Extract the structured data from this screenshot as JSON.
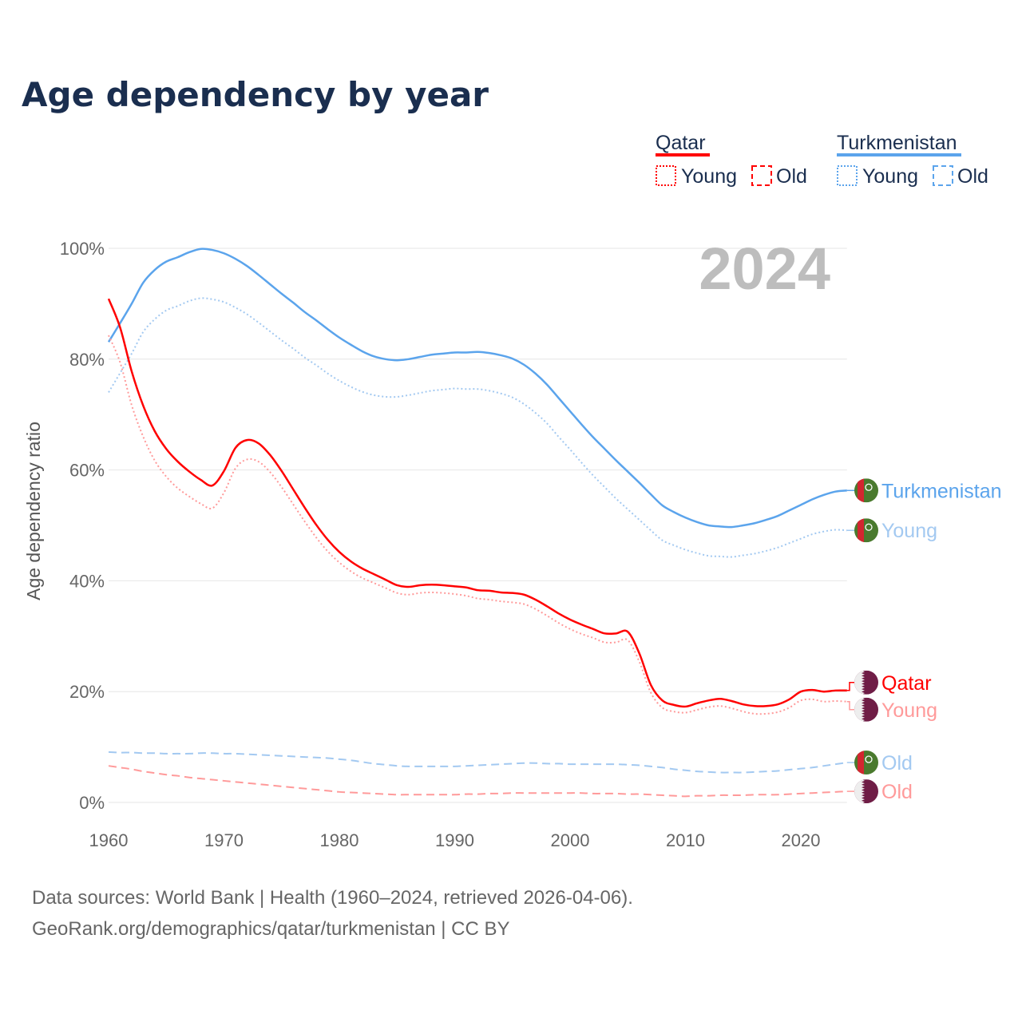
{
  "title": "Age dependency by year",
  "year_badge": "2024",
  "footer": {
    "line1": "Data sources: World Bank | Health (1960–2024, retrieved 2026-04-06).",
    "line2": "GeoRank.org/demographics/qatar/turkmenistan | CC BY"
  },
  "legend": {
    "qatar": {
      "name": "Qatar",
      "young": "Young",
      "old": "Old"
    },
    "turkmenistan": {
      "name": "Turkmenistan",
      "young": "Young",
      "old": "Old"
    }
  },
  "colors": {
    "qatar": "#ff0000",
    "qatar_light": "#ff9a9a",
    "turkmenistan": "#5ba4ec",
    "turkmenistan_light": "#a3c9f1",
    "qatar_flag": "#6f1d46",
    "turkmenistan_flag": "#4a7a2e",
    "turkmenistan_flag_stripe": "#d22630"
  },
  "chart_data": {
    "type": "line",
    "title": "Age dependency by year",
    "xlabel": "",
    "ylabel": "Age dependency ratio",
    "xlim": [
      1960,
      2024
    ],
    "ylim": [
      0,
      100
    ],
    "x_ticks": [
      "1960",
      "1970",
      "1980",
      "1990",
      "2000",
      "2010",
      "2020"
    ],
    "y_ticks": [
      "0%",
      "20%",
      "40%",
      "60%",
      "80%",
      "100%"
    ],
    "grid": true,
    "x_start": 1960,
    "series": [
      {
        "key": "tkm_total",
        "name": "Turkmenistan",
        "label": "Turkmenistan",
        "country": "turkmenistan",
        "style": "solid",
        "values": [
          83.1,
          86.5,
          90.0,
          93.8,
          96.1,
          97.6,
          98.4,
          99.3,
          99.9,
          99.7,
          99.1,
          98.1,
          96.8,
          95.2,
          93.5,
          91.8,
          90.2,
          88.5,
          87.0,
          85.4,
          83.9,
          82.6,
          81.4,
          80.5,
          80.0,
          79.8,
          80.0,
          80.4,
          80.8,
          81.0,
          81.2,
          81.2,
          81.3,
          81.1,
          80.7,
          80.1,
          79.0,
          77.4,
          75.4,
          73.0,
          70.6,
          68.2,
          65.9,
          63.8,
          61.7,
          59.7,
          57.7,
          55.6,
          53.6,
          52.4,
          51.4,
          50.6,
          50.0,
          49.8,
          49.7,
          50.0,
          50.4,
          51.0,
          51.7,
          52.7,
          53.7,
          54.7,
          55.5,
          56.1,
          56.3
        ]
      },
      {
        "key": "tkm_young",
        "name": "Turkmenistan Young",
        "label": "Young",
        "country": "turkmenistan",
        "style": "dotted",
        "values": [
          74.0,
          77.5,
          81.0,
          84.9,
          87.2,
          88.8,
          89.6,
          90.5,
          91.0,
          90.8,
          90.3,
          89.3,
          88.1,
          86.6,
          85.0,
          83.4,
          81.9,
          80.3,
          78.9,
          77.4,
          76.1,
          75.0,
          74.1,
          73.5,
          73.2,
          73.2,
          73.5,
          73.9,
          74.3,
          74.5,
          74.7,
          74.6,
          74.6,
          74.3,
          73.8,
          73.1,
          71.9,
          70.3,
          68.4,
          66.0,
          63.7,
          61.3,
          59.0,
          56.9,
          54.8,
          52.9,
          51.0,
          49.1,
          47.3,
          46.4,
          45.6,
          45.0,
          44.5,
          44.4,
          44.3,
          44.6,
          44.9,
          45.4,
          46.0,
          46.8,
          47.6,
          48.4,
          48.9,
          49.2,
          49.1
        ]
      },
      {
        "key": "qat_total",
        "name": "Qatar",
        "label": "Qatar",
        "country": "qatar",
        "style": "solid",
        "values": [
          90.9,
          85.7,
          77.8,
          71.6,
          67.0,
          63.8,
          61.5,
          59.7,
          58.2,
          57.2,
          59.8,
          64.0,
          65.4,
          64.8,
          62.7,
          59.8,
          56.5,
          53.2,
          50.1,
          47.4,
          45.2,
          43.5,
          42.2,
          41.2,
          40.2,
          39.2,
          38.9,
          39.2,
          39.3,
          39.2,
          39.0,
          38.8,
          38.3,
          38.2,
          37.9,
          37.8,
          37.5,
          36.6,
          35.4,
          34.1,
          33.0,
          32.1,
          31.3,
          30.5,
          30.5,
          30.8,
          26.9,
          21.2,
          18.4,
          17.6,
          17.3,
          17.9,
          18.4,
          18.7,
          18.3,
          17.7,
          17.4,
          17.4,
          17.7,
          18.6,
          20.0,
          20.3,
          20.0,
          20.2,
          20.2
        ]
      },
      {
        "key": "qat_young",
        "name": "Qatar Young",
        "label": "Young",
        "country": "qatar",
        "style": "dotted",
        "values": [
          84.3,
          79.4,
          71.7,
          66.0,
          61.7,
          58.8,
          56.7,
          55.2,
          53.9,
          53.1,
          55.9,
          60.3,
          61.9,
          61.5,
          59.6,
          56.9,
          53.8,
          50.7,
          47.8,
          45.3,
          43.3,
          41.7,
          40.5,
          39.6,
          38.7,
          37.8,
          37.5,
          37.8,
          37.9,
          37.8,
          37.6,
          37.3,
          36.8,
          36.6,
          36.3,
          36.1,
          35.8,
          34.9,
          33.7,
          32.4,
          31.3,
          30.4,
          29.7,
          28.9,
          28.9,
          29.3,
          25.4,
          19.8,
          17.1,
          16.4,
          16.2,
          16.7,
          17.2,
          17.4,
          17.0,
          16.4,
          16.0,
          16.0,
          16.3,
          17.1,
          18.4,
          18.6,
          18.2,
          18.3,
          18.2
        ]
      },
      {
        "key": "tkm_old",
        "name": "Turkmenistan Old",
        "label": "Old",
        "country": "turkmenistan",
        "style": "dashed",
        "values": [
          9.1,
          9.0,
          9.0,
          8.9,
          8.9,
          8.8,
          8.8,
          8.8,
          8.9,
          8.9,
          8.8,
          8.8,
          8.7,
          8.6,
          8.5,
          8.4,
          8.3,
          8.2,
          8.1,
          8.0,
          7.8,
          7.6,
          7.3,
          7.0,
          6.8,
          6.6,
          6.5,
          6.5,
          6.5,
          6.5,
          6.5,
          6.6,
          6.7,
          6.8,
          6.9,
          7.0,
          7.1,
          7.1,
          7.0,
          7.0,
          6.9,
          6.9,
          6.9,
          6.9,
          6.9,
          6.8,
          6.7,
          6.5,
          6.3,
          6.0,
          5.8,
          5.6,
          5.5,
          5.4,
          5.4,
          5.4,
          5.5,
          5.6,
          5.7,
          5.9,
          6.1,
          6.3,
          6.6,
          6.9,
          7.2
        ]
      },
      {
        "key": "qat_old",
        "name": "Qatar Old",
        "label": "Old",
        "country": "qatar",
        "style": "dashed",
        "values": [
          6.6,
          6.3,
          6.0,
          5.6,
          5.3,
          5.0,
          4.8,
          4.5,
          4.3,
          4.1,
          3.9,
          3.7,
          3.5,
          3.3,
          3.1,
          2.9,
          2.7,
          2.5,
          2.3,
          2.1,
          1.9,
          1.8,
          1.7,
          1.6,
          1.5,
          1.4,
          1.4,
          1.4,
          1.4,
          1.4,
          1.4,
          1.5,
          1.5,
          1.6,
          1.6,
          1.7,
          1.7,
          1.7,
          1.7,
          1.7,
          1.7,
          1.7,
          1.6,
          1.6,
          1.6,
          1.5,
          1.5,
          1.4,
          1.3,
          1.2,
          1.1,
          1.2,
          1.2,
          1.3,
          1.3,
          1.3,
          1.4,
          1.4,
          1.4,
          1.5,
          1.6,
          1.7,
          1.8,
          1.9,
          2.0
        ]
      }
    ]
  }
}
